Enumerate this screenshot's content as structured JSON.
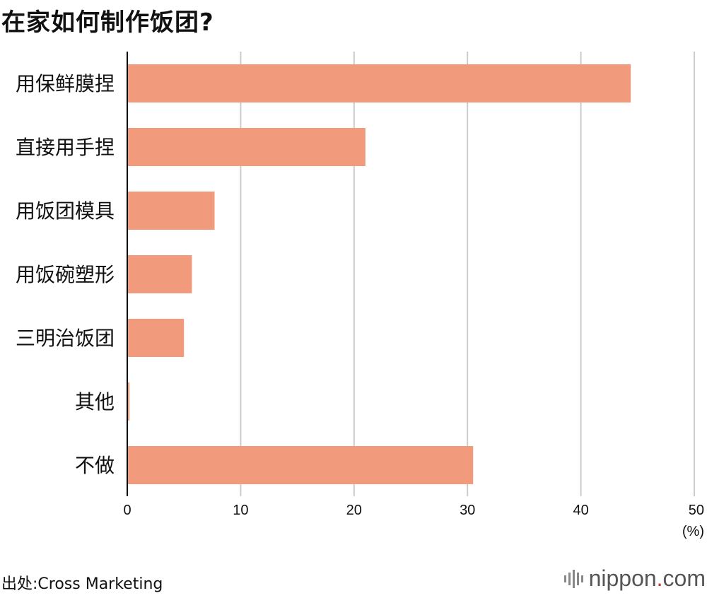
{
  "title": "在家如何制作饭团?",
  "source": "出处:Cross Marketing",
  "logo": {
    "name": "nippon",
    "dot": ".",
    "suffix": "com"
  },
  "colors": {
    "bar": "#f29b7c",
    "grid": "#cccccc",
    "axis": "#000000"
  },
  "chart_data": {
    "type": "bar",
    "orientation": "horizontal",
    "title": "在家如何制作饭团?",
    "unit": "(%)",
    "categories": [
      "用保鲜膜捏",
      "直接用手捏",
      "用饭团模具",
      "用饭碗塑形",
      "三明治饭团",
      "其他",
      "不做"
    ],
    "values": [
      44.4,
      21.0,
      7.7,
      5.7,
      5.0,
      0.2,
      30.5
    ],
    "xlim": [
      0,
      50
    ],
    "xticks": [
      0,
      10,
      20,
      30,
      40,
      50
    ],
    "grid": true
  }
}
